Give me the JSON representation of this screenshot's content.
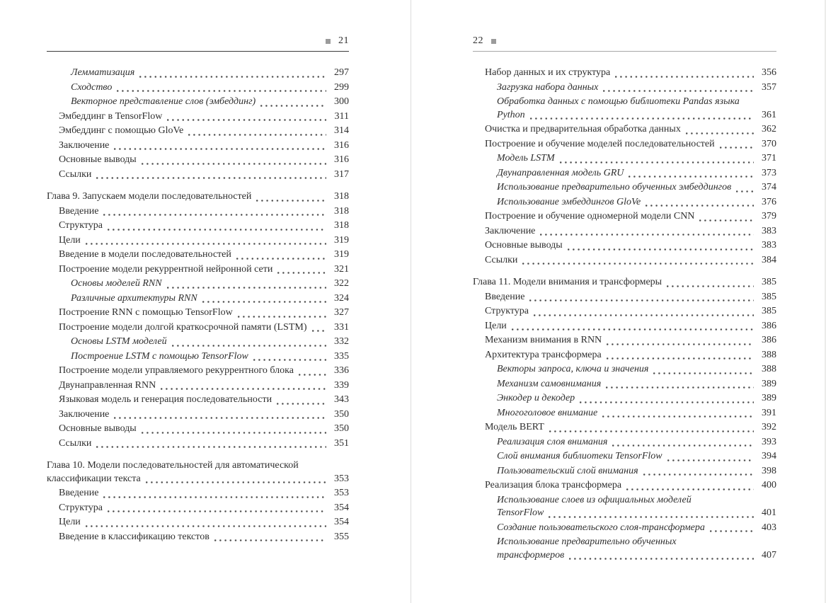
{
  "left_page": {
    "folio": "21",
    "entries": [
      {
        "level": 2,
        "italic": true,
        "chapter": false,
        "lines": [
          "Лемматизация"
        ],
        "page": "297"
      },
      {
        "level": 2,
        "italic": true,
        "chapter": false,
        "lines": [
          "Сходство"
        ],
        "page": "299"
      },
      {
        "level": 2,
        "italic": true,
        "chapter": false,
        "lines": [
          "Векторное представление слов (эмбеддинг)"
        ],
        "page": "300"
      },
      {
        "level": 1,
        "italic": false,
        "chapter": false,
        "lines": [
          "Эмбеддинг в TensorFlow"
        ],
        "page": "311"
      },
      {
        "level": 1,
        "italic": false,
        "chapter": false,
        "lines": [
          "Эмбеддинг с помощью GloVe"
        ],
        "page": "314"
      },
      {
        "level": 1,
        "italic": false,
        "chapter": false,
        "lines": [
          "Заключение"
        ],
        "page": "316"
      },
      {
        "level": 1,
        "italic": false,
        "chapter": false,
        "lines": [
          "Основные выводы"
        ],
        "page": "316"
      },
      {
        "level": 1,
        "italic": false,
        "chapter": false,
        "lines": [
          "Ссылки"
        ],
        "page": "317"
      },
      {
        "level": 0,
        "italic": false,
        "chapter": true,
        "lines": [
          "Глава 9. Запускаем модели последовательностей"
        ],
        "page": "318"
      },
      {
        "level": 1,
        "italic": false,
        "chapter": false,
        "lines": [
          "Введение"
        ],
        "page": "318"
      },
      {
        "level": 1,
        "italic": false,
        "chapter": false,
        "lines": [
          "Структура"
        ],
        "page": "318"
      },
      {
        "level": 1,
        "italic": false,
        "chapter": false,
        "lines": [
          "Цели"
        ],
        "page": "319"
      },
      {
        "level": 1,
        "italic": false,
        "chapter": false,
        "lines": [
          "Введение в модели последовательностей"
        ],
        "page": "319"
      },
      {
        "level": 1,
        "italic": false,
        "chapter": false,
        "lines": [
          "Построение модели рекуррентной нейронной сети"
        ],
        "page": "321"
      },
      {
        "level": 2,
        "italic": true,
        "chapter": false,
        "lines": [
          "Основы моделей RNN"
        ],
        "page": "322"
      },
      {
        "level": 2,
        "italic": true,
        "chapter": false,
        "lines": [
          "Различные архитектуры RNN"
        ],
        "page": "324"
      },
      {
        "level": 1,
        "italic": false,
        "chapter": false,
        "lines": [
          "Построение RNN с помощью TensorFlow"
        ],
        "page": "327"
      },
      {
        "level": 1,
        "italic": false,
        "chapter": false,
        "lines": [
          "Построение модели долгой краткосрочной памяти (LSTM)"
        ],
        "page": "331"
      },
      {
        "level": 2,
        "italic": true,
        "chapter": false,
        "lines": [
          "Основы LSTM моделей"
        ],
        "page": "332"
      },
      {
        "level": 2,
        "italic": true,
        "chapter": false,
        "lines": [
          "Построение LSTM с помощью TensorFlow"
        ],
        "page": "335"
      },
      {
        "level": 1,
        "italic": false,
        "chapter": false,
        "lines": [
          "Построение модели управляемого рекуррентного блока"
        ],
        "page": "336"
      },
      {
        "level": 1,
        "italic": false,
        "chapter": false,
        "lines": [
          "Двунаправленная RNN"
        ],
        "page": "339"
      },
      {
        "level": 1,
        "italic": false,
        "chapter": false,
        "lines": [
          "Языковая модель и генерация последовательности"
        ],
        "page": "343"
      },
      {
        "level": 1,
        "italic": false,
        "chapter": false,
        "lines": [
          "Заключение"
        ],
        "page": "350"
      },
      {
        "level": 1,
        "italic": false,
        "chapter": false,
        "lines": [
          "Основные выводы"
        ],
        "page": "350"
      },
      {
        "level": 1,
        "italic": false,
        "chapter": false,
        "lines": [
          "Ссылки"
        ],
        "page": "351"
      },
      {
        "level": 0,
        "italic": false,
        "chapter": true,
        "lines": [
          "Глава 10. Модели последовательностей для автоматической",
          "классификации текста"
        ],
        "page": "353"
      },
      {
        "level": 1,
        "italic": false,
        "chapter": false,
        "lines": [
          "Введение"
        ],
        "page": "353"
      },
      {
        "level": 1,
        "italic": false,
        "chapter": false,
        "lines": [
          "Структура"
        ],
        "page": "354"
      },
      {
        "level": 1,
        "italic": false,
        "chapter": false,
        "lines": [
          "Цели"
        ],
        "page": "354"
      },
      {
        "level": 1,
        "italic": false,
        "chapter": false,
        "lines": [
          "Введение в классификацию текстов"
        ],
        "page": "355"
      }
    ]
  },
  "right_page": {
    "folio": "22",
    "entries": [
      {
        "level": 1,
        "italic": false,
        "chapter": false,
        "lines": [
          "Набор данных и их структура"
        ],
        "page": "356"
      },
      {
        "level": 2,
        "italic": true,
        "chapter": false,
        "lines": [
          "Загрузка набора данных"
        ],
        "page": "357"
      },
      {
        "level": 2,
        "italic": true,
        "chapter": false,
        "lines": [
          "Обработка данных с помощью библиотеки Pandas языка",
          "Python"
        ],
        "page": "361"
      },
      {
        "level": 1,
        "italic": false,
        "chapter": false,
        "lines": [
          "Очистка и предварительная обработка данных"
        ],
        "page": "362"
      },
      {
        "level": 1,
        "italic": false,
        "chapter": false,
        "lines": [
          "Построение и обучение моделей последовательностей"
        ],
        "page": "370"
      },
      {
        "level": 2,
        "italic": true,
        "chapter": false,
        "lines": [
          "Модель LSTM"
        ],
        "page": "371"
      },
      {
        "level": 2,
        "italic": true,
        "chapter": false,
        "lines": [
          "Двунаправленная модель GRU"
        ],
        "page": "373"
      },
      {
        "level": 2,
        "italic": true,
        "chapter": false,
        "lines": [
          "Использование предварительно обученных эмбеддингов"
        ],
        "page": "374"
      },
      {
        "level": 2,
        "italic": true,
        "chapter": false,
        "lines": [
          "Использование эмбеддингов GloVe"
        ],
        "page": "376"
      },
      {
        "level": 1,
        "italic": false,
        "chapter": false,
        "lines": [
          "Построение и обучение одномерной модели CNN"
        ],
        "page": "379"
      },
      {
        "level": 1,
        "italic": false,
        "chapter": false,
        "lines": [
          "Заключение"
        ],
        "page": "383"
      },
      {
        "level": 1,
        "italic": false,
        "chapter": false,
        "lines": [
          "Основные выводы"
        ],
        "page": "383"
      },
      {
        "level": 1,
        "italic": false,
        "chapter": false,
        "lines": [
          "Ссылки"
        ],
        "page": "384"
      },
      {
        "level": 0,
        "italic": false,
        "chapter": true,
        "lines": [
          "Глава 11. Модели внимания и трансформеры"
        ],
        "page": "385"
      },
      {
        "level": 1,
        "italic": false,
        "chapter": false,
        "lines": [
          "Введение"
        ],
        "page": "385"
      },
      {
        "level": 1,
        "italic": false,
        "chapter": false,
        "lines": [
          "Структура"
        ],
        "page": "385"
      },
      {
        "level": 1,
        "italic": false,
        "chapter": false,
        "lines": [
          "Цели"
        ],
        "page": "386"
      },
      {
        "level": 1,
        "italic": false,
        "chapter": false,
        "lines": [
          "Механизм внимания в RNN"
        ],
        "page": "386"
      },
      {
        "level": 1,
        "italic": false,
        "chapter": false,
        "lines": [
          "Архитектура трансформера"
        ],
        "page": "388"
      },
      {
        "level": 2,
        "italic": true,
        "chapter": false,
        "lines": [
          "Векторы запроса, ключа и значения"
        ],
        "page": "388"
      },
      {
        "level": 2,
        "italic": true,
        "chapter": false,
        "lines": [
          "Механизм самовнимания"
        ],
        "page": "389"
      },
      {
        "level": 2,
        "italic": true,
        "chapter": false,
        "lines": [
          "Энкодер и декодер"
        ],
        "page": "389"
      },
      {
        "level": 2,
        "italic": true,
        "chapter": false,
        "lines": [
          "Многоголовое внимание"
        ],
        "page": "391"
      },
      {
        "level": 1,
        "italic": false,
        "chapter": false,
        "lines": [
          "Модель BERT"
        ],
        "page": "392"
      },
      {
        "level": 2,
        "italic": true,
        "chapter": false,
        "lines": [
          "Реализация слоя внимания"
        ],
        "page": "393"
      },
      {
        "level": 2,
        "italic": true,
        "chapter": false,
        "lines": [
          "Слой внимания библиотеки TensorFlow"
        ],
        "page": "394"
      },
      {
        "level": 2,
        "italic": true,
        "chapter": false,
        "lines": [
          "Пользовательский слой внимания"
        ],
        "page": "398"
      },
      {
        "level": 1,
        "italic": false,
        "chapter": false,
        "lines": [
          "Реализация блока трансформера"
        ],
        "page": "400"
      },
      {
        "level": 2,
        "italic": true,
        "chapter": false,
        "lines": [
          "Использование слоев из официальных моделей",
          "TensorFlow"
        ],
        "page": "401"
      },
      {
        "level": 2,
        "italic": true,
        "chapter": false,
        "lines": [
          "Создание пользовательского слоя-трансформера"
        ],
        "page": "403"
      },
      {
        "level": 2,
        "italic": true,
        "chapter": false,
        "lines": [
          "Использование предварительно обученных",
          "трансформеров"
        ],
        "page": "407"
      }
    ]
  }
}
